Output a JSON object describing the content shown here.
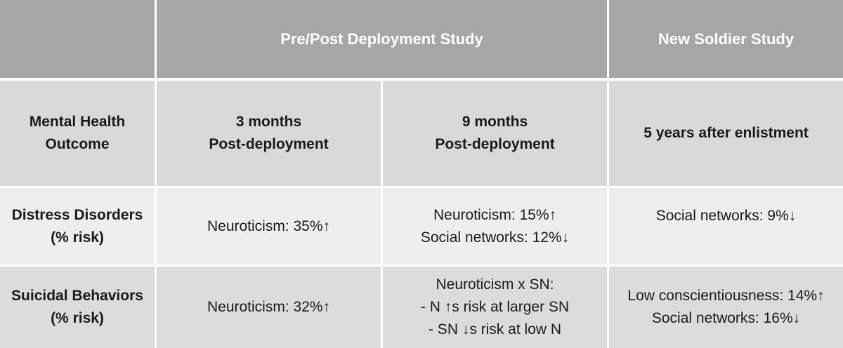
{
  "header": {
    "corner": "",
    "prepost": "Pre/Post Deployment Study",
    "newsoldier": "New Soldier Study"
  },
  "subheader": {
    "outcome": [
      "Mental Health",
      "Outcome"
    ],
    "three_months": [
      "3 months",
      "Post-deployment"
    ],
    "nine_months": [
      "9 months",
      "Post-deployment"
    ],
    "five_years": [
      "5 years after enlistment"
    ]
  },
  "rows": [
    {
      "label": [
        "Distress Disorders",
        "(% risk)"
      ],
      "three_months": [
        "Neuroticism: 35%↑"
      ],
      "nine_months": [
        "Neuroticism: 15%↑",
        "Social networks: 12%↓"
      ],
      "five_years": [
        "Social networks: 9%↓"
      ]
    },
    {
      "label": [
        "Suicidal Behaviors",
        "(% risk)"
      ],
      "three_months": [
        "Neuroticism: 32%↑"
      ],
      "nine_months": [
        "Neuroticism x SN:",
        "- N ↑s risk at larger SN",
        "- SN ↓s risk at low N"
      ],
      "five_years": [
        "Low conscientiousness: 14%↑",
        "Social networks: 16%↓"
      ]
    }
  ]
}
